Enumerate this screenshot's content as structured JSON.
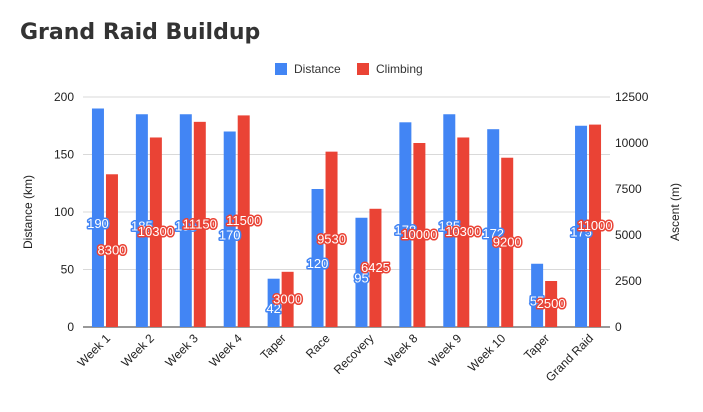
{
  "chart_data": {
    "type": "bar",
    "title": "Grand Raid Buildup",
    "categories": [
      "Week 1",
      "Week 2",
      "Week 3",
      "Week 4",
      "Taper",
      "Race",
      "Recovery",
      "Week 8",
      "Week 9",
      "Week 10",
      "Taper",
      "Grand Raid"
    ],
    "series": [
      {
        "name": "Distance",
        "axis": "left",
        "color": "#4285f4",
        "values": [
          190,
          185,
          185,
          170,
          42,
          120,
          95,
          178,
          185,
          172,
          55,
          175
        ]
      },
      {
        "name": "Climbing",
        "axis": "right",
        "color": "#ea4335",
        "values": [
          8300,
          10300,
          11150,
          11500,
          3000,
          9530,
          6425,
          10000,
          10300,
          9200,
          2500,
          11000
        ]
      }
    ],
    "ylabel": "Distance (km)",
    "y2label": "Ascent (m)",
    "ylim": [
      0,
      200
    ],
    "y2lim": [
      0,
      12500
    ],
    "yticks": [
      0,
      50,
      100,
      150,
      200
    ],
    "y2ticks": [
      0,
      2500,
      5000,
      7500,
      10000,
      12500
    ],
    "grid": true,
    "legend": "top-center"
  }
}
